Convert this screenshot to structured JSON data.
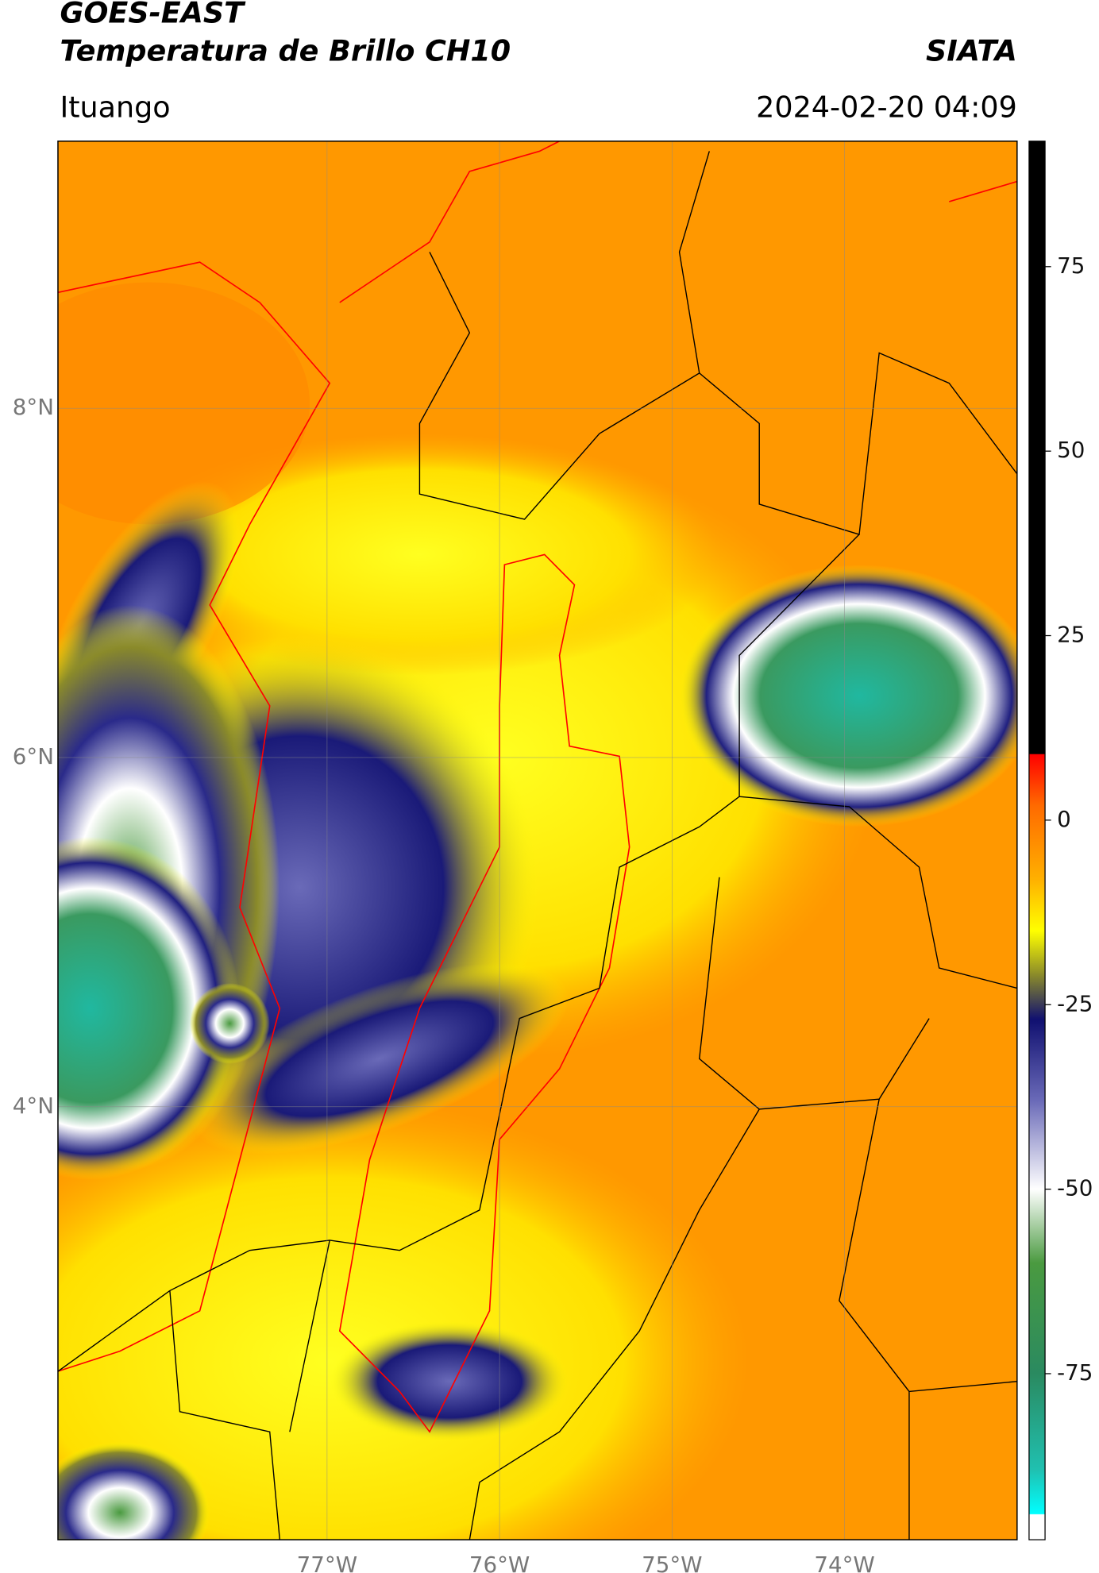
{
  "header": {
    "title": "GOES-EAST",
    "subtitle": "Temperatura de Brillo CH10",
    "brand": "SIATA",
    "location": "Ituango",
    "timestamp": "2024-02-20 04:09"
  },
  "map": {
    "lonlim": [
      -78.56,
      -73.0
    ],
    "latlim": [
      1.52,
      9.53
    ],
    "lon_ticks": [
      {
        "value": -77,
        "label": "77°W"
      },
      {
        "value": -76,
        "label": "76°W"
      },
      {
        "value": -75,
        "label": "75°W"
      },
      {
        "value": -74,
        "label": "74°W"
      }
    ],
    "lat_ticks": [
      {
        "value": 8,
        "label": "8°N"
      },
      {
        "value": 6,
        "label": "6°N"
      },
      {
        "value": 4,
        "label": "4°N"
      }
    ]
  },
  "colorbar": {
    "lim": [
      -97.5,
      92
    ],
    "ticks": [
      75,
      50,
      25,
      0,
      -25,
      -50,
      -75
    ],
    "colormap": [
      [
        92,
        "#000000"
      ],
      [
        9,
        "#000000"
      ],
      [
        8.9,
        "#ff0000"
      ],
      [
        2,
        "#ff6a00"
      ],
      [
        -8,
        "#ffb000"
      ],
      [
        -15,
        "#ffff00"
      ],
      [
        -21,
        "#8a8a2a"
      ],
      [
        -27,
        "#101070"
      ],
      [
        -38,
        "#6a6ab8"
      ],
      [
        -50,
        "#ffffff"
      ],
      [
        -60,
        "#4a9a40"
      ],
      [
        -75,
        "#2a8a60"
      ],
      [
        -88,
        "#20c0b0"
      ],
      [
        -94,
        "#00ffff"
      ],
      [
        -94.1,
        "#ffffff"
      ],
      [
        -97.5,
        "#ffffff"
      ]
    ]
  }
}
